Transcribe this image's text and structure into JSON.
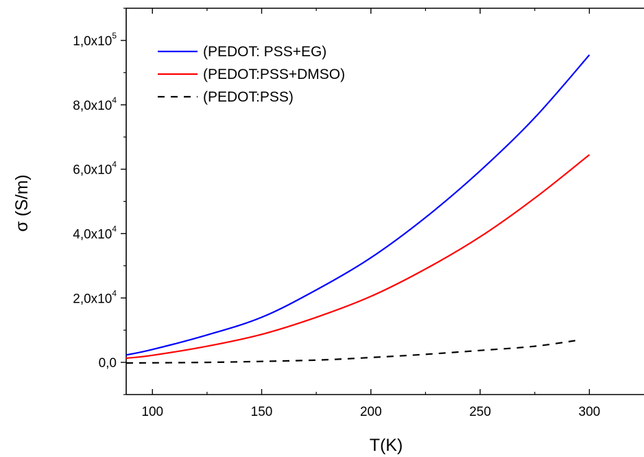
{
  "chart_data": {
    "type": "line",
    "title": "",
    "xlabel": "T(K)",
    "ylabel": "σ (S/m)",
    "xlim": [
      88,
      325
    ],
    "ylim": [
      -10000,
      110000
    ],
    "x_ticks": [
      100,
      150,
      200,
      250,
      300
    ],
    "x_tick_labels": [
      "100",
      "150",
      "200",
      "250",
      "300"
    ],
    "y_ticks": [
      0,
      20000,
      40000,
      60000,
      80000,
      100000
    ],
    "y_tick_labels": [
      {
        "mantissa": "0,0",
        "exp": ""
      },
      {
        "mantissa": "2,0x10",
        "exp": "4"
      },
      {
        "mantissa": "4,0x10",
        "exp": "4"
      },
      {
        "mantissa": "6,0x10",
        "exp": "4"
      },
      {
        "mantissa": "8,0x10",
        "exp": "4"
      },
      {
        "mantissa": "1,0x10",
        "exp": "5"
      }
    ],
    "grid": false,
    "legend_position": "top-left",
    "series": [
      {
        "name": "(PEDOT: PSS+EG)",
        "color": "#0000ff",
        "dash": "solid",
        "x": [
          88,
          100,
          125,
          150,
          175,
          200,
          225,
          250,
          275,
          300
        ],
        "y": [
          2300,
          4000,
          8500,
          14000,
          22500,
          32500,
          45000,
          59500,
          76000,
          95500
        ]
      },
      {
        "name": "(PEDOT:PSS+DMSO)",
        "color": "#ff0000",
        "dash": "solid",
        "x": [
          88,
          100,
          125,
          150,
          175,
          200,
          225,
          250,
          275,
          300
        ],
        "y": [
          1300,
          2200,
          5000,
          8700,
          14000,
          20500,
          29000,
          39000,
          51000,
          64500
        ]
      },
      {
        "name": "(PEDOT:PSS)",
        "color": "#000000",
        "dash": "dashed",
        "x": [
          88,
          125,
          150,
          175,
          200,
          225,
          250,
          275,
          295
        ],
        "y": [
          -200,
          0,
          300,
          700,
          1500,
          2500,
          3700,
          5000,
          6900
        ]
      }
    ]
  }
}
